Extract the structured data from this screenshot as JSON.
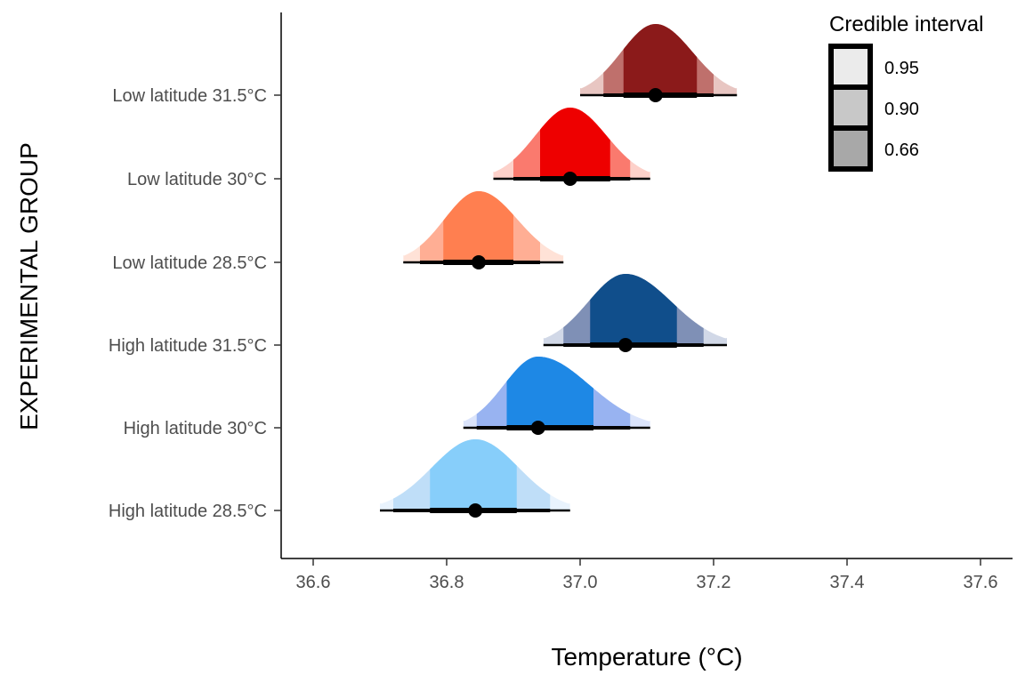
{
  "chart_data": {
    "type": "density-interval",
    "xlabel": "Temperature (°C)",
    "ylabel": "EXPERIMENTAL GROUP",
    "xlim": [
      36.55,
      37.65
    ],
    "xticks": [
      "36.6",
      "36.8",
      "37.0",
      "37.2",
      "37.4",
      "37.6"
    ],
    "grid": false,
    "legend": {
      "title": "Credible interval",
      "position": "top-right",
      "entries": [
        {
          "label": "0.95",
          "color": "#ebebeb"
        },
        {
          "label": "0.90",
          "color": "#c8c8c8"
        },
        {
          "label": "0.66",
          "color": "#a8a8a8"
        }
      ]
    },
    "series": [
      {
        "name": "Low latitude 31.5°C",
        "median": 37.113,
        "ci66": [
          37.065,
          37.175
        ],
        "ci90": [
          37.035,
          37.2
        ],
        "ci95": [
          37.0,
          37.235
        ],
        "range": [
          37.0,
          37.235
        ],
        "peak_color": "#8b1a1a",
        "mid_color": "#bf706c",
        "light_color": "#e8c6c2"
      },
      {
        "name": "Low latitude 30°C",
        "median": 36.985,
        "ci66": [
          36.94,
          37.045
        ],
        "ci90": [
          36.9,
          37.075
        ],
        "ci95": [
          36.87,
          37.105
        ],
        "range": [
          36.87,
          37.105
        ],
        "peak_color": "#ee0000",
        "mid_color": "#fa7a6e",
        "light_color": "#fdd1ca"
      },
      {
        "name": "Low latitude 28.5°C",
        "median": 36.848,
        "ci66": [
          36.795,
          36.9
        ],
        "ci90": [
          36.76,
          36.94
        ],
        "ci95": [
          36.735,
          36.975
        ],
        "range": [
          36.735,
          36.975
        ],
        "peak_color": "#ff7f50",
        "mid_color": "#ffae94",
        "light_color": "#ffe2d7"
      },
      {
        "name": "High latitude 31.5°C",
        "median": 37.068,
        "ci66": [
          37.015,
          37.145
        ],
        "ci90": [
          36.975,
          37.185
        ],
        "ci95": [
          36.945,
          37.22
        ],
        "range": [
          36.945,
          37.22
        ],
        "peak_color": "#104e8b",
        "mid_color": "#7f90b6",
        "light_color": "#d1d8e7"
      },
      {
        "name": "High latitude 30°C",
        "median": 36.937,
        "ci66": [
          36.89,
          37.02
        ],
        "ci90": [
          36.845,
          37.075
        ],
        "ci95": [
          36.825,
          37.105
        ],
        "range": [
          36.825,
          37.105
        ],
        "peak_color": "#1e88e5",
        "mid_color": "#98b3f1",
        "light_color": "#dbe4fb"
      },
      {
        "name": "High latitude 28.5°C",
        "median": 36.843,
        "ci66": [
          36.775,
          36.905
        ],
        "ci90": [
          36.72,
          36.955
        ],
        "ci95": [
          36.7,
          36.985
        ],
        "range": [
          36.7,
          36.985
        ],
        "peak_color": "#87cefa",
        "mid_color": "#bfdef8",
        "light_color": "#e9f3fd"
      }
    ]
  }
}
